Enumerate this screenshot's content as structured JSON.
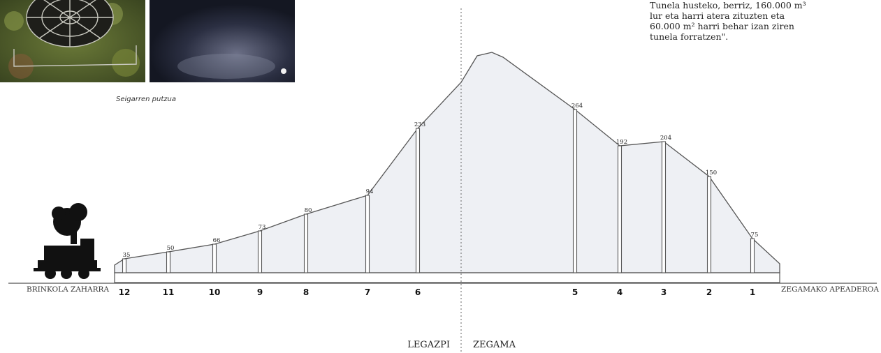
{
  "caption": "Seigarren putzua",
  "quote": {
    "lines": [
      "Tunela husteko, berriz, 160.000 m³",
      "lur eta harri atera zituzten eta",
      "60.000 m² harri behar izan ziren",
      "tunela forratzen\"."
    ]
  },
  "profile": {
    "left_station": "BRINKOLA ZAHARRA",
    "right_station": "ZEGAMAKO APEADEROA",
    "left_municipality": "LEGAZPI",
    "right_municipality": "ZEGAMA",
    "wells": [
      {
        "number": "12",
        "depth": "35"
      },
      {
        "number": "11",
        "depth": "50"
      },
      {
        "number": "10",
        "depth": "66"
      },
      {
        "number": "9",
        "depth": "73"
      },
      {
        "number": "8",
        "depth": "80"
      },
      {
        "number": "7",
        "depth": "94"
      },
      {
        "number": "6",
        "depth": "233"
      },
      {
        "number": "5",
        "depth": "264"
      },
      {
        "number": "4",
        "depth": "192"
      },
      {
        "number": "3",
        "depth": "204"
      },
      {
        "number": "2",
        "depth": "150"
      },
      {
        "number": "1",
        "depth": "75"
      }
    ]
  },
  "colors": {
    "line": "#555555",
    "fill": "#eef0f4",
    "text": "#222222"
  }
}
